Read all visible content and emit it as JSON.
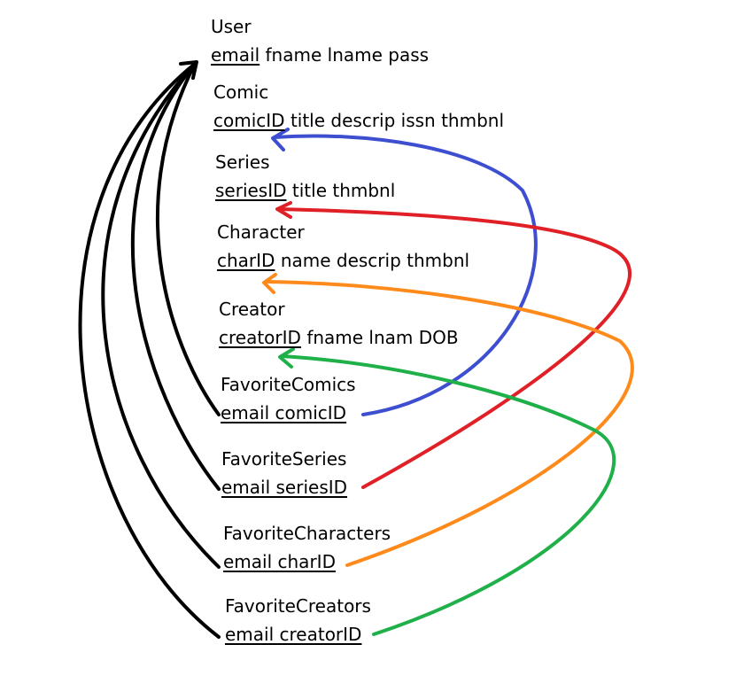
{
  "colors": {
    "text": "#000000",
    "line_user": "#000000",
    "line_comic": "#3d4fd0",
    "line_series": "#e02026",
    "line_character": "#ff8a1c",
    "line_creator": "#20b04a",
    "background": "#ffffff"
  },
  "entities": {
    "user": {
      "name": "User",
      "pk": "email",
      "rest": "fname lname pass"
    },
    "comic": {
      "name": "Comic",
      "pk": "comicID",
      "rest": "title descrip issn thmbnl"
    },
    "series": {
      "name": "Series",
      "pk": "seriesID",
      "rest": "title thmbnl"
    },
    "character": {
      "name": "Character",
      "pk": "charID",
      "rest": "name descrip thmbnl"
    },
    "creator": {
      "name": "Creator",
      "pk": "creatorID",
      "rest": "fname lnam DOB"
    },
    "favorite_comics": {
      "name": "FavoriteComics",
      "fields": "email comicID"
    },
    "favorite_series": {
      "name": "FavoriteSeries",
      "fields": "email seriesID"
    },
    "favorite_characters": {
      "name": "FavoriteCharacters",
      "fields": "email charID"
    },
    "favorite_creators": {
      "name": "FavoriteCreators",
      "fields": "email creatorID"
    }
  },
  "relationships": [
    {
      "from": "FavoriteComics",
      "to": "User",
      "color": "#000000"
    },
    {
      "from": "FavoriteSeries",
      "to": "User",
      "color": "#000000"
    },
    {
      "from": "FavoriteCharacters",
      "to": "User",
      "color": "#000000"
    },
    {
      "from": "FavoriteCreators",
      "to": "User",
      "color": "#000000"
    },
    {
      "from": "FavoriteComics",
      "to": "Comic",
      "color": "#3d4fd0"
    },
    {
      "from": "FavoriteSeries",
      "to": "Series",
      "color": "#e02026"
    },
    {
      "from": "FavoriteCharacters",
      "to": "Character",
      "color": "#ff8a1c"
    },
    {
      "from": "FavoriteCreators",
      "to": "Creator",
      "color": "#20b04a"
    }
  ]
}
